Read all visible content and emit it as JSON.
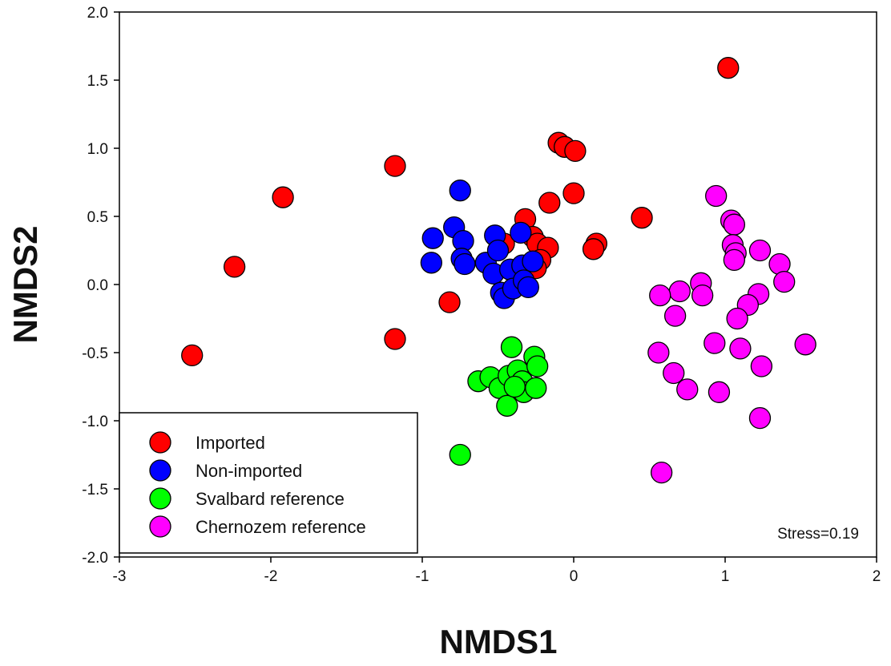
{
  "chart_data": {
    "type": "scatter",
    "title": "",
    "xlabel": "NMDS1",
    "ylabel": "NMDS2",
    "xlim": [
      -3,
      2
    ],
    "ylim": [
      -2,
      2
    ],
    "x_ticks": [
      -3,
      -2,
      -1,
      0,
      1,
      2
    ],
    "y_ticks": [
      -2.0,
      -1.5,
      -1.0,
      -0.5,
      0.0,
      0.5,
      1.0,
      1.5,
      2.0
    ],
    "x_tick_labels": [
      "-3",
      "-2",
      "-1",
      "0",
      "1",
      "2"
    ],
    "y_tick_labels": [
      "-2.0",
      "-1.5",
      "-1.0",
      "-0.5",
      "0.0",
      "0.5",
      "1.0",
      "1.5",
      "2.0"
    ],
    "grid": false,
    "legend_position": "bottom-left",
    "annotation": "Stress=0.19",
    "series": [
      {
        "name": "Imported",
        "color": "#ff0000",
        "x": [
          -2.52,
          -2.24,
          -1.92,
          -1.18,
          -1.18,
          -0.82,
          -0.32,
          -0.27,
          -0.24,
          -0.17,
          -0.16,
          -0.22,
          -0.25,
          -0.46,
          -0.1,
          -0.06,
          0.01,
          0.0,
          0.15,
          0.13,
          0.45,
          1.02
        ],
        "y": [
          -0.52,
          0.13,
          0.64,
          0.87,
          -0.4,
          -0.13,
          0.48,
          0.35,
          0.3,
          0.27,
          0.6,
          0.18,
          0.12,
          0.3,
          1.04,
          1.01,
          0.98,
          0.67,
          0.3,
          0.26,
          0.49,
          1.59
        ]
      },
      {
        "name": "Non-imported",
        "color": "#0000ff",
        "x": [
          -0.75,
          -0.79,
          -0.93,
          -0.94,
          -0.73,
          -0.74,
          -0.72,
          -0.58,
          -0.52,
          -0.5,
          -0.53,
          -0.48,
          -0.46,
          -0.42,
          -0.4,
          -0.35,
          -0.34,
          -0.33,
          -0.3,
          -0.27
        ],
        "y": [
          0.69,
          0.42,
          0.34,
          0.16,
          0.32,
          0.19,
          0.15,
          0.16,
          0.36,
          0.25,
          0.08,
          -0.06,
          -0.1,
          0.11,
          -0.03,
          0.38,
          0.14,
          0.03,
          -0.02,
          0.17
        ]
      },
      {
        "name": "Svalbard reference",
        "color": "#00ff00",
        "x": [
          -0.41,
          -0.63,
          -0.55,
          -0.49,
          -0.44,
          -0.43,
          -0.37,
          -0.34,
          -0.33,
          -0.26,
          -0.24,
          -0.25,
          -0.39,
          -0.75
        ],
        "y": [
          -0.46,
          -0.71,
          -0.68,
          -0.76,
          -0.89,
          -0.67,
          -0.63,
          -0.71,
          -0.79,
          -0.53,
          -0.6,
          -0.76,
          -0.75,
          -1.25
        ]
      },
      {
        "name": "Chernozem reference",
        "color": "#ff00ff",
        "x": [
          0.94,
          1.04,
          1.06,
          1.05,
          1.07,
          1.06,
          1.23,
          1.36,
          1.39,
          1.22,
          1.15,
          1.08,
          0.84,
          0.85,
          0.7,
          0.57,
          0.67,
          0.56,
          0.66,
          0.75,
          0.93,
          0.96,
          1.1,
          1.24,
          1.53,
          1.23,
          0.58
        ],
        "y": [
          0.65,
          0.47,
          0.44,
          0.29,
          0.23,
          0.18,
          0.25,
          0.15,
          0.02,
          -0.07,
          -0.15,
          -0.25,
          0.01,
          -0.08,
          -0.05,
          -0.08,
          -0.23,
          -0.5,
          -0.65,
          -0.77,
          -0.43,
          -0.79,
          -0.47,
          -0.6,
          -0.44,
          -0.98,
          -1.38
        ]
      }
    ]
  }
}
